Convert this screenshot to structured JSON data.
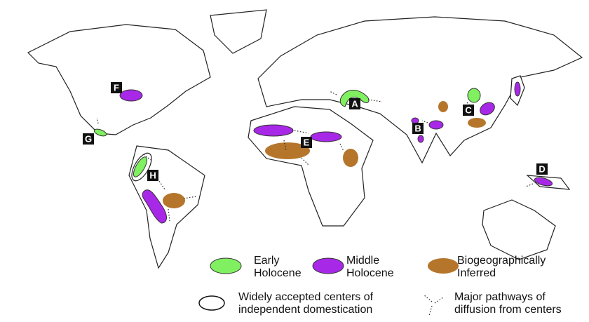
{
  "map": {
    "centers": [
      {
        "label": "A"
      },
      {
        "label": "B"
      },
      {
        "label": "C"
      },
      {
        "label": "D"
      },
      {
        "label": "E"
      },
      {
        "label": "F"
      },
      {
        "label": "G"
      },
      {
        "label": "H"
      }
    ],
    "legend": [
      {
        "lines": [
          "Early",
          "Holocene"
        ]
      },
      {
        "lines": [
          "Middle",
          "Holocene"
        ]
      },
      {
        "lines": [
          "Biogeographically",
          "Inferred"
        ]
      },
      {
        "lines": [
          "Widely accepted centers of",
          "independent domestication"
        ]
      },
      {
        "lines": [
          "Major pathways of",
          "diffusion from centers"
        ]
      }
    ]
  }
}
